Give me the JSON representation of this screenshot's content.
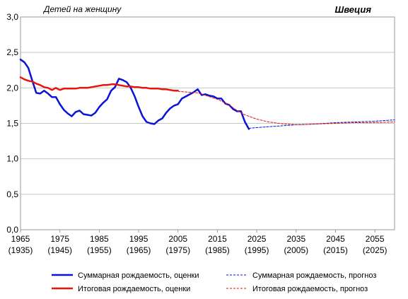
{
  "chart_data": {
    "type": "line",
    "unit_label": "Детей на женщину",
    "country_label": "Швеция",
    "ylim": [
      0,
      3
    ],
    "xlim": [
      1965,
      2060
    ],
    "y_ticks": [
      "0,0",
      "0,5",
      "1,0",
      "1,5",
      "2,0",
      "2,5",
      "3,0"
    ],
    "y_tick_values": [
      0,
      0.5,
      1,
      1.5,
      2,
      2.5,
      3
    ],
    "x_ticks": [
      {
        "year": 1965,
        "label": "1965",
        "sublabel": "(1935)"
      },
      {
        "year": 1975,
        "label": "1975",
        "sublabel": "(1945)"
      },
      {
        "year": 1985,
        "label": "1985",
        "sublabel": "(1955)"
      },
      {
        "year": 1995,
        "label": "1995",
        "sublabel": "(1965)"
      },
      {
        "year": 2005,
        "label": "2005",
        "sublabel": "(1975)"
      },
      {
        "year": 2015,
        "label": "2015",
        "sublabel": "(1985)"
      },
      {
        "year": 2025,
        "label": "2025",
        "sublabel": "(1995)"
      },
      {
        "year": 2035,
        "label": "2035",
        "sublabel": "(2005)"
      },
      {
        "year": 2045,
        "label": "2045",
        "sublabel": "(2015)"
      },
      {
        "year": 2055,
        "label": "2055",
        "sublabel": "(2025)"
      }
    ],
    "grid": "horizontal",
    "legend_position": "bottom",
    "colors": {
      "blue": "#0a14d8",
      "red": "#e8140c"
    },
    "series": [
      {
        "name": "Суммарная  рождаемость, оценки",
        "color": "#0a14d8",
        "style": "solid",
        "points": [
          [
            1965,
            2.4
          ],
          [
            1966,
            2.36
          ],
          [
            1967,
            2.28
          ],
          [
            1968,
            2.1
          ],
          [
            1969,
            1.93
          ],
          [
            1970,
            1.92
          ],
          [
            1971,
            1.96
          ],
          [
            1972,
            1.92
          ],
          [
            1973,
            1.87
          ],
          [
            1974,
            1.87
          ],
          [
            1975,
            1.77
          ],
          [
            1976,
            1.69
          ],
          [
            1977,
            1.64
          ],
          [
            1978,
            1.6
          ],
          [
            1979,
            1.66
          ],
          [
            1980,
            1.68
          ],
          [
            1981,
            1.63
          ],
          [
            1982,
            1.62
          ],
          [
            1983,
            1.61
          ],
          [
            1984,
            1.65
          ],
          [
            1985,
            1.73
          ],
          [
            1986,
            1.79
          ],
          [
            1987,
            1.84
          ],
          [
            1988,
            1.96
          ],
          [
            1989,
            2.01
          ],
          [
            1990,
            2.13
          ],
          [
            1991,
            2.11
          ],
          [
            1992,
            2.08
          ],
          [
            1993,
            2.0
          ],
          [
            1994,
            1.88
          ],
          [
            1995,
            1.73
          ],
          [
            1996,
            1.6
          ],
          [
            1997,
            1.52
          ],
          [
            1998,
            1.5
          ],
          [
            1999,
            1.49
          ],
          [
            2000,
            1.54
          ],
          [
            2001,
            1.57
          ],
          [
            2002,
            1.65
          ],
          [
            2003,
            1.71
          ],
          [
            2004,
            1.75
          ],
          [
            2005,
            1.77
          ],
          [
            2006,
            1.85
          ],
          [
            2007,
            1.88
          ],
          [
            2008,
            1.91
          ],
          [
            2009,
            1.94
          ],
          [
            2010,
            1.98
          ],
          [
            2011,
            1.9
          ],
          [
            2012,
            1.91
          ],
          [
            2013,
            1.89
          ],
          [
            2014,
            1.88
          ],
          [
            2015,
            1.85
          ],
          [
            2016,
            1.85
          ],
          [
            2017,
            1.78
          ],
          [
            2018,
            1.76
          ],
          [
            2019,
            1.7
          ],
          [
            2020,
            1.67
          ],
          [
            2021,
            1.67
          ],
          [
            2022,
            1.52
          ],
          [
            2023,
            1.42
          ]
        ]
      },
      {
        "name": "Итоговая рождаемость, оценки",
        "color": "#e8140c",
        "style": "solid",
        "points": [
          [
            1965,
            2.15
          ],
          [
            1966,
            2.12
          ],
          [
            1967,
            2.1
          ],
          [
            1968,
            2.09
          ],
          [
            1969,
            2.06
          ],
          [
            1970,
            2.04
          ],
          [
            1971,
            2.01
          ],
          [
            1972,
            2.0
          ],
          [
            1973,
            1.97
          ],
          [
            1974,
            2.0
          ],
          [
            1975,
            1.97
          ],
          [
            1976,
            1.99
          ],
          [
            1977,
            1.99
          ],
          [
            1978,
            1.99
          ],
          [
            1979,
            1.99
          ],
          [
            1980,
            2.0
          ],
          [
            1981,
            2.0
          ],
          [
            1982,
            2.0
          ],
          [
            1983,
            2.01
          ],
          [
            1984,
            2.02
          ],
          [
            1985,
            2.03
          ],
          [
            1986,
            2.04
          ],
          [
            1987,
            2.04
          ],
          [
            1988,
            2.05
          ],
          [
            1989,
            2.05
          ],
          [
            1990,
            2.04
          ],
          [
            1991,
            2.03
          ],
          [
            1992,
            2.02
          ],
          [
            1993,
            2.02
          ],
          [
            1994,
            2.01
          ],
          [
            1995,
            2.01
          ],
          [
            1996,
            2.0
          ],
          [
            1997,
            2.0
          ],
          [
            1998,
            1.99
          ],
          [
            1999,
            1.99
          ],
          [
            2000,
            1.99
          ],
          [
            2001,
            1.98
          ],
          [
            2002,
            1.98
          ],
          [
            2003,
            1.97
          ],
          [
            2004,
            1.96
          ],
          [
            2005,
            1.96
          ]
        ]
      },
      {
        "name": "Суммарная  рождаемость, прогноз",
        "color": "#0a14d8",
        "style": "dashed",
        "points": [
          [
            2023,
            1.43
          ],
          [
            2025,
            1.44
          ],
          [
            2030,
            1.46
          ],
          [
            2035,
            1.48
          ],
          [
            2040,
            1.49
          ],
          [
            2045,
            1.51
          ],
          [
            2050,
            1.52
          ],
          [
            2055,
            1.53
          ],
          [
            2060,
            1.55
          ]
        ]
      },
      {
        "name": "Итоговая рождаемость, прогноз",
        "color": "#e8140c",
        "style": "dashed",
        "points": [
          [
            2005,
            1.95
          ],
          [
            2010,
            1.93
          ],
          [
            2015,
            1.84
          ],
          [
            2018,
            1.76
          ],
          [
            2020,
            1.68
          ],
          [
            2022,
            1.62
          ],
          [
            2025,
            1.56
          ],
          [
            2028,
            1.52
          ],
          [
            2032,
            1.49
          ],
          [
            2036,
            1.48
          ],
          [
            2040,
            1.49
          ],
          [
            2045,
            1.5
          ],
          [
            2050,
            1.51
          ],
          [
            2055,
            1.51
          ],
          [
            2060,
            1.52
          ]
        ]
      }
    ]
  }
}
